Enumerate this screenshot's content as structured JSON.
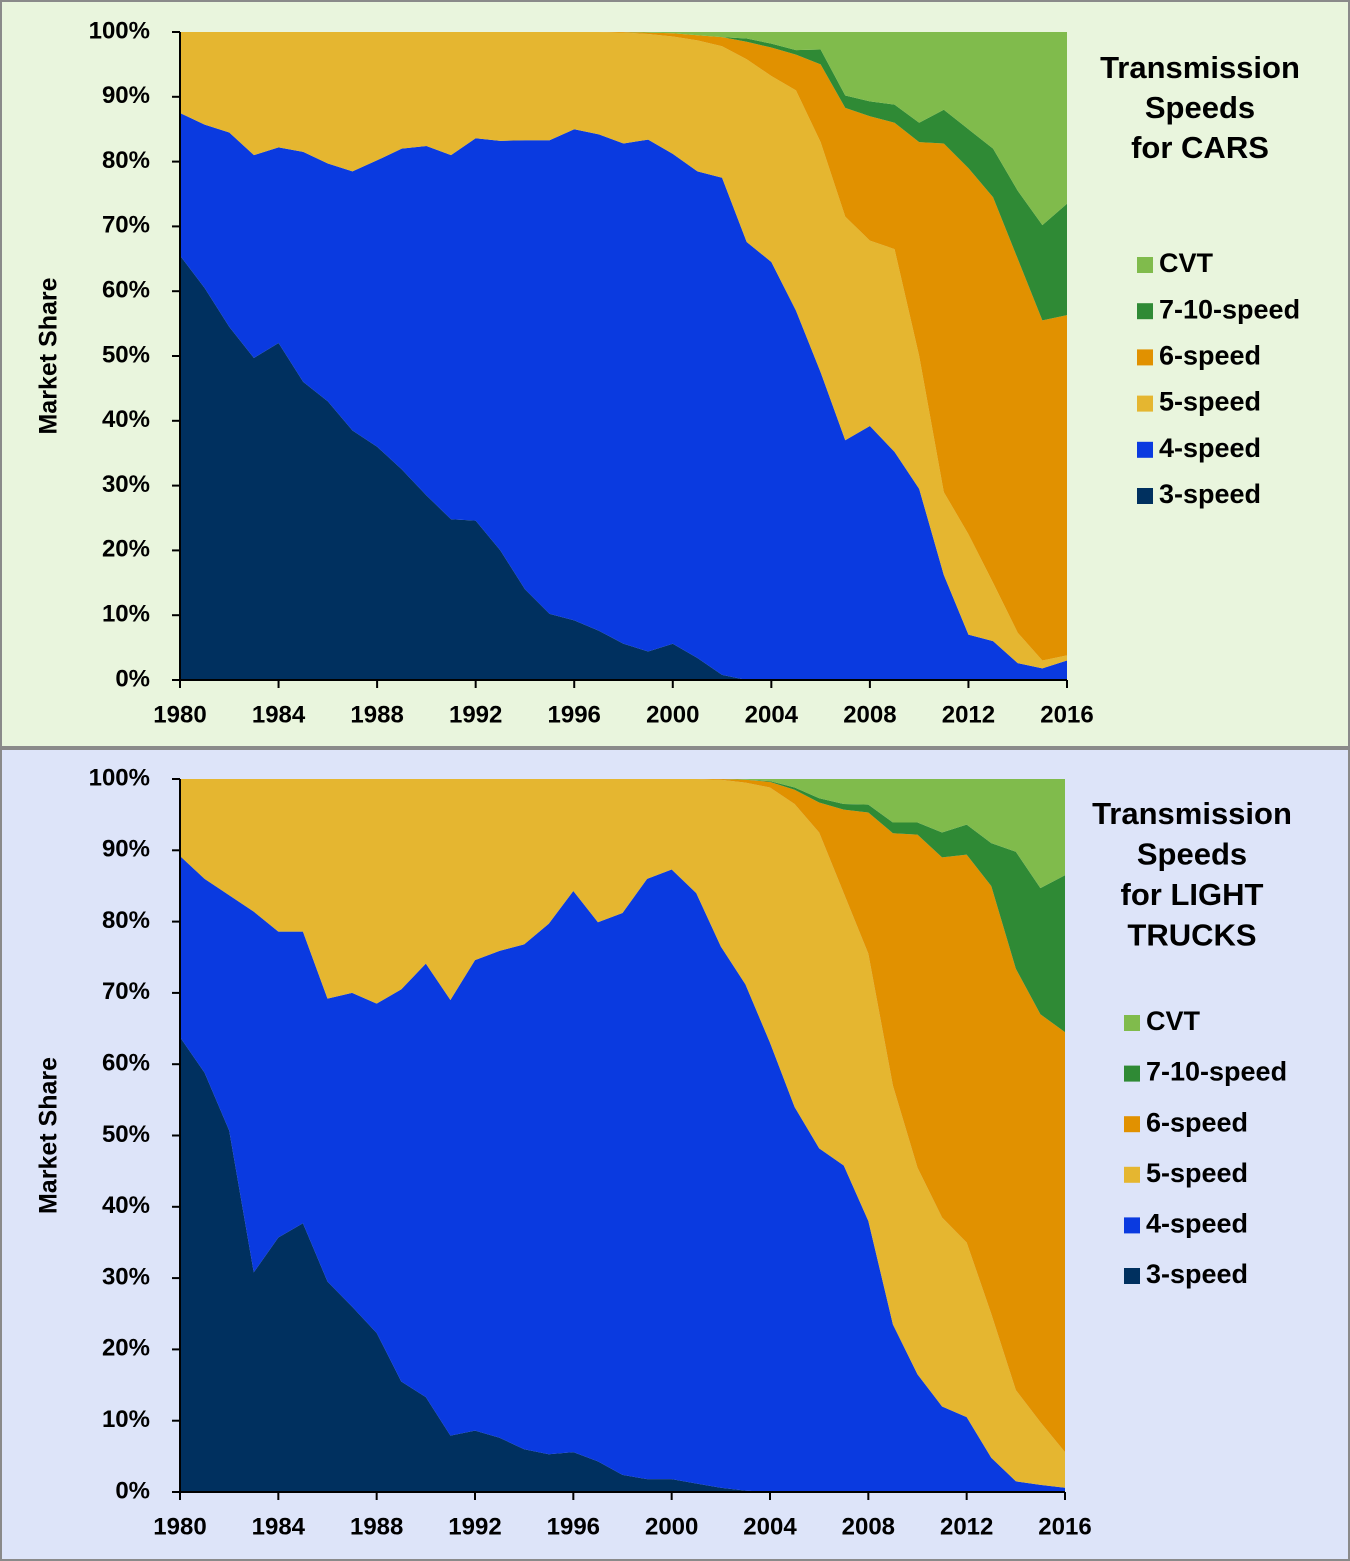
{
  "chart_data": [
    {
      "type": "stacked_area",
      "title": [
        "Transmission",
        "Speeds",
        "for CARS"
      ],
      "y_label": "Market Share",
      "x": [
        1980,
        1981,
        1982,
        1983,
        1984,
        1985,
        1986,
        1987,
        1988,
        1989,
        1990,
        1991,
        1992,
        1993,
        1994,
        1995,
        1996,
        1997,
        1998,
        1999,
        2000,
        2001,
        2002,
        2003,
        2004,
        2005,
        2006,
        2007,
        2008,
        2009,
        2010,
        2011,
        2012,
        2013,
        2014,
        2015,
        2016
      ],
      "xlim": [
        1980,
        2016
      ],
      "xticks": [
        1980,
        1984,
        1988,
        1992,
        1996,
        2000,
        2004,
        2008,
        2012,
        2016
      ],
      "ylim": [
        0,
        100
      ],
      "yticks": [
        {
          "value": 0,
          "label": "0%"
        },
        {
          "value": 10,
          "label": "10%"
        },
        {
          "value": 20,
          "label": "20%"
        },
        {
          "value": 30,
          "label": "30%"
        },
        {
          "value": 40,
          "label": "40%"
        },
        {
          "value": 50,
          "label": "50%"
        },
        {
          "value": 60,
          "label": "60%"
        },
        {
          "value": 70,
          "label": "70%"
        },
        {
          "value": 80,
          "label": "80%"
        },
        {
          "value": 90,
          "label": "90%"
        },
        {
          "value": 100,
          "label": "100%"
        }
      ],
      "series": [
        {
          "name": "3-speed",
          "color": "#00305f",
          "values": [
            65.5,
            60.5,
            54.5,
            49.7,
            52,
            46,
            43,
            38.5,
            36,
            32.5,
            28.5,
            24.8,
            24.6,
            20,
            14,
            10.2,
            9.2,
            7.6,
            5.6,
            4.4,
            5.6,
            3.4,
            0.8,
            0,
            0,
            0,
            0,
            0,
            0,
            0,
            0,
            0,
            0,
            0,
            0,
            0,
            0
          ]
        },
        {
          "name": "4-speed",
          "color": "#0a3ae0",
          "values": [
            22,
            25.2,
            30,
            31.3,
            30.2,
            35.5,
            36.7,
            40,
            44.2,
            49.5,
            53.9,
            56.2,
            59,
            63.2,
            69.3,
            73.1,
            75.8,
            76.6,
            77.2,
            79,
            75.6,
            75.1,
            76.7,
            67.6,
            64.5,
            57,
            47.5,
            37,
            39.2,
            35.2,
            29.5,
            16.2,
            7,
            6,
            2.6,
            1.8,
            3
          ]
        },
        {
          "name": "5-speed",
          "color": "#e5b630",
          "values": [
            12.5,
            14.3,
            15.5,
            19,
            17.8,
            18.5,
            20.3,
            21.5,
            19.8,
            18,
            17.6,
            19,
            16.4,
            16.8,
            16.7,
            16.7,
            15,
            15.8,
            17.1,
            16.3,
            18.1,
            20.2,
            20.3,
            28.2,
            28.7,
            34,
            35.5,
            34.5,
            28.6,
            31.3,
            20.5,
            12.8,
            15.5,
            9,
            4.7,
            1.2,
            0.8
          ]
        },
        {
          "name": "6-speed",
          "color": "#e19100",
          "values": [
            0,
            0,
            0,
            0,
            0,
            0,
            0,
            0,
            0,
            0,
            0,
            0,
            0,
            0,
            0,
            0,
            0,
            0,
            0.1,
            0.2,
            0.5,
            0.8,
            1.4,
            2.7,
            4.4,
            5.5,
            12,
            16.8,
            19.2,
            19.5,
            33,
            53.8,
            56.5,
            59.5,
            57.7,
            52.5,
            52.5
          ]
        },
        {
          "name": "7-10-speed",
          "color": "#2f8a35",
          "values": [
            0,
            0,
            0,
            0,
            0,
            0,
            0,
            0,
            0,
            0,
            0,
            0,
            0,
            0,
            0,
            0,
            0,
            0,
            0,
            0,
            0,
            0,
            0,
            0.5,
            0.6,
            0.7,
            2.3,
            1.9,
            2.3,
            2.8,
            3,
            5.2,
            6,
            7.5,
            10.5,
            14.7,
            17.2
          ]
        },
        {
          "name": "CVT",
          "color": "#80bb4c",
          "values": [
            0,
            0,
            0,
            0,
            0,
            0,
            0,
            0,
            0,
            0,
            0,
            0,
            0,
            0,
            0,
            0,
            0,
            0,
            0,
            0.1,
            0.2,
            0.5,
            0.8,
            1,
            1.8,
            2.8,
            2.7,
            9.8,
            10.7,
            11.2,
            14,
            12,
            15,
            18,
            24.5,
            29.8,
            26.5
          ]
        }
      ]
    },
    {
      "type": "stacked_area",
      "title": [
        "Transmission",
        "Speeds",
        "for LIGHT",
        "TRUCKS"
      ],
      "y_label": "Market Share",
      "x": [
        1980,
        1981,
        1982,
        1983,
        1984,
        1985,
        1986,
        1987,
        1988,
        1989,
        1990,
        1991,
        1992,
        1993,
        1994,
        1995,
        1996,
        1997,
        1998,
        1999,
        2000,
        2001,
        2002,
        2003,
        2004,
        2005,
        2006,
        2007,
        2008,
        2009,
        2010,
        2011,
        2012,
        2013,
        2014,
        2015,
        2016
      ],
      "xlim": [
        1980,
        2016
      ],
      "xticks": [
        1980,
        1984,
        1988,
        1992,
        1996,
        2000,
        2004,
        2008,
        2012,
        2016
      ],
      "ylim": [
        0,
        100
      ],
      "yticks": [
        {
          "value": 0,
          "label": "0%"
        },
        {
          "value": 10,
          "label": "10%"
        },
        {
          "value": 20,
          "label": "20%"
        },
        {
          "value": 30,
          "label": "30%"
        },
        {
          "value": 40,
          "label": "40%"
        },
        {
          "value": 50,
          "label": "50%"
        },
        {
          "value": 60,
          "label": "60%"
        },
        {
          "value": 70,
          "label": "70%"
        },
        {
          "value": 80,
          "label": "80%"
        },
        {
          "value": 90,
          "label": "90%"
        },
        {
          "value": 100,
          "label": "100%"
        }
      ],
      "series": [
        {
          "name": "3-speed",
          "color": "#00305f",
          "values": [
            63.8,
            58.8,
            50.7,
            30.8,
            35.7,
            37.7,
            29.5,
            26,
            22.3,
            15.5,
            13.3,
            7.9,
            8.6,
            7.6,
            6,
            5.3,
            5.6,
            4.3,
            2.4,
            1.8,
            1.8,
            1.2,
            0.6,
            0.2,
            0,
            0,
            0,
            0,
            0,
            0,
            0,
            0,
            0,
            0,
            0,
            0,
            0
          ]
        },
        {
          "name": "4-speed",
          "color": "#0a3ae0",
          "values": [
            25.4,
            27.2,
            33,
            50.6,
            42.9,
            40.9,
            39.7,
            44,
            46.2,
            55,
            60.8,
            61.1,
            66,
            68.3,
            70.8,
            74.4,
            78.7,
            75.6,
            78.8,
            84.2,
            85.5,
            82.8,
            75.9,
            71,
            63,
            54,
            48.2,
            45.8,
            38,
            23.5,
            16.5,
            12,
            10.5,
            4.8,
            1.5,
            1,
            0.6
          ]
        },
        {
          "name": "5-speed",
          "color": "#e5b630",
          "values": [
            10.8,
            14,
            16.3,
            18.6,
            21.4,
            21.4,
            30.8,
            30,
            31.5,
            29.5,
            25.9,
            31,
            25.4,
            24.1,
            23.2,
            20.3,
            15.7,
            20.1,
            18.8,
            14,
            12.7,
            16,
            23.4,
            28.3,
            35.8,
            42.5,
            44.3,
            38.2,
            37.5,
            33.5,
            29,
            26.5,
            24.5,
            20.2,
            12.8,
            8.8,
            5
          ]
        },
        {
          "name": "6-speed",
          "color": "#e19100",
          "values": [
            0,
            0,
            0,
            0,
            0,
            0,
            0,
            0,
            0,
            0,
            0,
            0,
            0,
            0,
            0,
            0,
            0,
            0,
            0,
            0,
            0,
            0,
            0.1,
            0.4,
            0.8,
            2,
            4.2,
            11.7,
            19.8,
            35.4,
            46.7,
            50.5,
            54.4,
            60,
            59.1,
            57.2,
            58.9
          ]
        },
        {
          "name": "7-10-speed",
          "color": "#2f8a35",
          "values": [
            0,
            0,
            0,
            0,
            0,
            0,
            0,
            0,
            0,
            0,
            0,
            0,
            0,
            0,
            0,
            0,
            0,
            0,
            0,
            0,
            0,
            0,
            0,
            0,
            0.1,
            0.3,
            0.6,
            0.8,
            1.1,
            1.5,
            1.7,
            3.5,
            4.2,
            6,
            16.4,
            17.7,
            22
          ]
        },
        {
          "name": "CVT",
          "color": "#80bb4c",
          "values": [
            0,
            0,
            0,
            0,
            0,
            0,
            0,
            0,
            0,
            0,
            0,
            0,
            0,
            0,
            0,
            0,
            0,
            0,
            0,
            0,
            0,
            0,
            0,
            0.1,
            0.3,
            1.2,
            2.7,
            3.5,
            3.6,
            6.1,
            6.1,
            7.5,
            6.4,
            9,
            10.2,
            15.3,
            13.5
          ]
        }
      ]
    }
  ]
}
